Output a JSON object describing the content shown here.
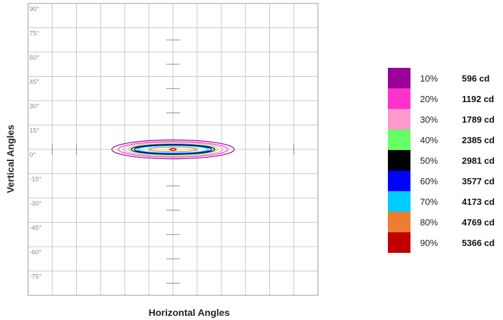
{
  "chart_data": {
    "type": "isocandela contour plot",
    "xlabel": "Horizontal Angles",
    "ylabel": "Vertical Angles",
    "y_ticks": [
      "90°",
      "75°",
      "60°",
      "45°",
      "30°",
      "15°",
      "0°",
      "-15°",
      "-30°",
      "-45°",
      "-60°",
      "-75°"
    ],
    "y_tick_values": [
      90,
      75,
      60,
      45,
      30,
      15,
      0,
      -15,
      -30,
      -45,
      -60,
      -75
    ],
    "ylim": [
      -90,
      90
    ],
    "xlim": [
      -90,
      90
    ],
    "x_grid_step": 15,
    "grid": true,
    "legend_position": "right",
    "peak": {
      "x": 0,
      "y": 0
    },
    "series": [
      {
        "percent": "10%",
        "candela": "596 cd",
        "color": "#990099",
        "h_half_width": 38,
        "v_half_height": 5.8
      },
      {
        "percent": "20%",
        "candela": "1192 cd",
        "color": "#ff33cc",
        "h_half_width": 34,
        "v_half_height": 4.8
      },
      {
        "percent": "30%",
        "candela": "1789 cd",
        "color": "#ff99cc",
        "h_half_width": 31,
        "v_half_height": 4.2
      },
      {
        "percent": "40%",
        "candela": "2385 cd",
        "color": "#66ff66",
        "h_half_width": 28,
        "v_half_height": 3.5
      },
      {
        "percent": "50%",
        "candela": "2981 cd",
        "color": "#000000",
        "h_half_width": 26,
        "v_half_height": 3.0
      },
      {
        "percent": "60%",
        "candela": "3577 cd",
        "color": "#0000ff",
        "h_half_width": 24,
        "v_half_height": 2.6
      },
      {
        "percent": "70%",
        "candela": "4173 cd",
        "color": "#00ccff",
        "h_half_width": 22,
        "v_half_height": 2.2
      },
      {
        "percent": "80%",
        "candela": "4769 cd",
        "color": "#ed7d31",
        "h_half_width": 15,
        "v_half_height": 1.4
      },
      {
        "percent": "90%",
        "candela": "5366 cd",
        "color": "#c00000",
        "h_half_width": 2,
        "v_half_height": 0.6
      }
    ]
  }
}
